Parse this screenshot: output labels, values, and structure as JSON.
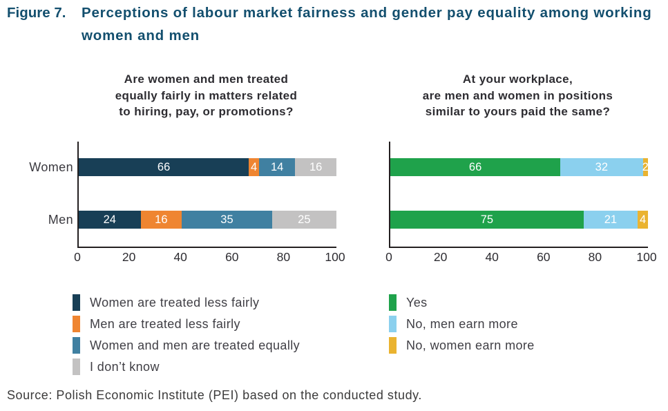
{
  "figure": {
    "label": "Figure 7.",
    "title_lines": [
      "Perceptions of labour market fairness and gender pay equality among working",
      "women and men"
    ]
  },
  "source": "Source: Polish Economic Institute (PEI) based on the conducted study.",
  "chart_data": [
    {
      "type": "bar",
      "orientation": "horizontal-stacked",
      "title_lines": [
        "Are women and men treated",
        "equally fairly in matters related",
        "to hiring, pay, or promotions?"
      ],
      "categories": [
        "Women",
        "Men"
      ],
      "series": [
        {
          "name": "Women are treated less fairly",
          "color": "#183f56",
          "values": [
            66,
            24
          ]
        },
        {
          "name": "Men are treated less fairly",
          "color": "#ef8531",
          "values": [
            4,
            16
          ]
        },
        {
          "name": "Women and men are treated equally",
          "color": "#4080a1",
          "values": [
            14,
            35
          ]
        },
        {
          "name": "I don’t know",
          "color": "#c3c2c2",
          "values": [
            16,
            25
          ]
        }
      ],
      "xlim": [
        0,
        100
      ],
      "ticks": [
        0,
        20,
        40,
        60,
        80,
        100
      ],
      "show_category_labels": true,
      "legend_position": "bottom"
    },
    {
      "type": "bar",
      "orientation": "horizontal-stacked",
      "title_lines": [
        "At your workplace,",
        "are men and women in positions",
        "similar to yours paid the same?"
      ],
      "categories": [
        "Women",
        "Men"
      ],
      "series": [
        {
          "name": "Yes",
          "color": "#1fa24b",
          "values": [
            66,
            75
          ]
        },
        {
          "name": "No, men earn more",
          "color": "#8bd0ee",
          "values": [
            32,
            21
          ]
        },
        {
          "name": "No, women earn more",
          "color": "#eab330",
          "values": [
            2,
            4
          ]
        }
      ],
      "xlim": [
        0,
        100
      ],
      "ticks": [
        0,
        20,
        40,
        60,
        80,
        100
      ],
      "show_category_labels": false,
      "legend_position": "bottom"
    }
  ]
}
